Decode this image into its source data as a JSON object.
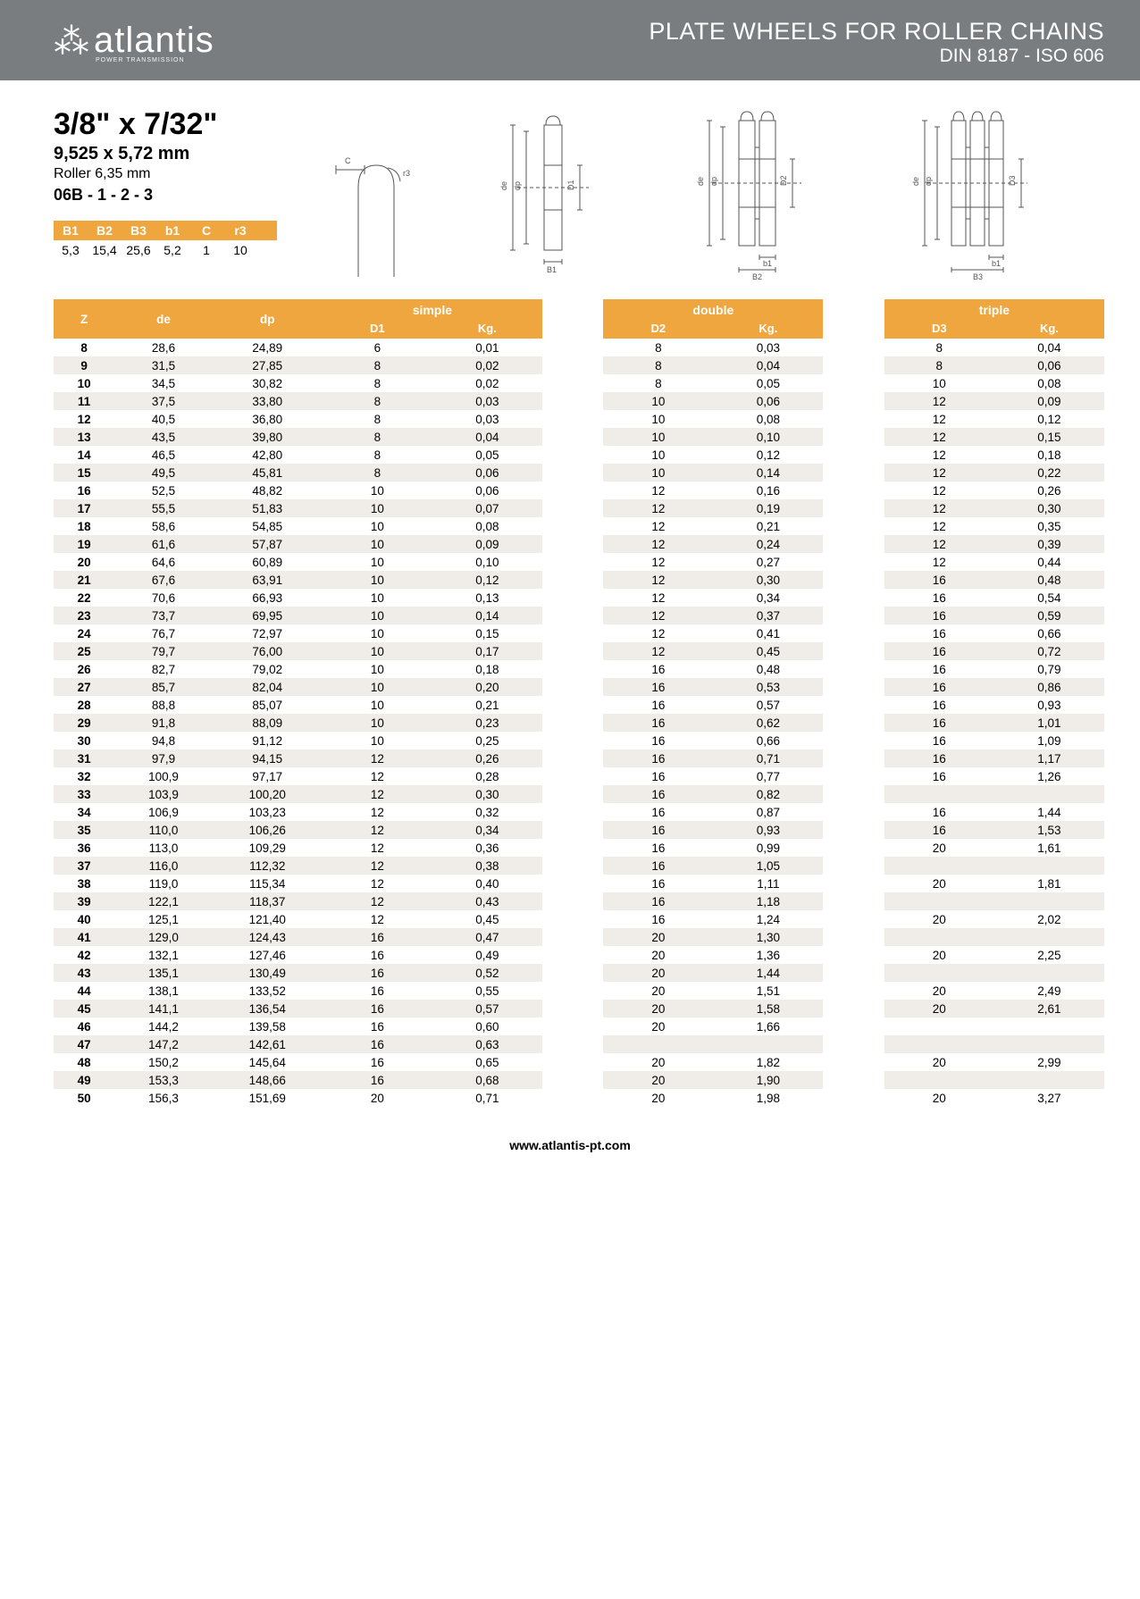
{
  "header": {
    "logo_text": "atlantis",
    "logo_sub": "POWER TRANSMISSION",
    "title1": "PLATE WHEELS FOR ROLLER CHAINS",
    "title2": "DIN 8187 - ISO 606"
  },
  "spec": {
    "main": "3/8\" x 7/32\"",
    "sub1": "9,525 x 5,72 mm",
    "sub2": "Roller 6,35 mm",
    "sub3": "06B - 1 - 2 - 3"
  },
  "mini_headers": [
    "B1",
    "B2",
    "B3",
    "b1",
    "C",
    "r3"
  ],
  "mini_values": [
    "5,3",
    "15,4",
    "25,6",
    "5,2",
    "1",
    "10"
  ],
  "columns": {
    "z": "Z",
    "de": "de",
    "dp": "dp",
    "simple": "simple",
    "d1": "D1",
    "kg1": "Kg.",
    "double": "double",
    "d2": "D2",
    "kg2": "Kg.",
    "triple": "triple",
    "d3": "D3",
    "kg3": "Kg."
  },
  "colors": {
    "header_bg": "#7a7d80",
    "accent": "#f0a63e",
    "row_alt": "#f0ede8",
    "text": "#222"
  },
  "footer": "www.atlantis-pt.com",
  "rows": [
    {
      "z": "8",
      "de": "28,6",
      "dp": "24,89",
      "d1": "6",
      "kg1": "0,01",
      "d2": "8",
      "kg2": "0,03",
      "d3": "8",
      "kg3": "0,04"
    },
    {
      "z": "9",
      "de": "31,5",
      "dp": "27,85",
      "d1": "8",
      "kg1": "0,02",
      "d2": "8",
      "kg2": "0,04",
      "d3": "8",
      "kg3": "0,06"
    },
    {
      "z": "10",
      "de": "34,5",
      "dp": "30,82",
      "d1": "8",
      "kg1": "0,02",
      "d2": "8",
      "kg2": "0,05",
      "d3": "10",
      "kg3": "0,08"
    },
    {
      "z": "11",
      "de": "37,5",
      "dp": "33,80",
      "d1": "8",
      "kg1": "0,03",
      "d2": "10",
      "kg2": "0,06",
      "d3": "12",
      "kg3": "0,09"
    },
    {
      "z": "12",
      "de": "40,5",
      "dp": "36,80",
      "d1": "8",
      "kg1": "0,03",
      "d2": "10",
      "kg2": "0,08",
      "d3": "12",
      "kg3": "0,12"
    },
    {
      "z": "13",
      "de": "43,5",
      "dp": "39,80",
      "d1": "8",
      "kg1": "0,04",
      "d2": "10",
      "kg2": "0,10",
      "d3": "12",
      "kg3": "0,15"
    },
    {
      "z": "14",
      "de": "46,5",
      "dp": "42,80",
      "d1": "8",
      "kg1": "0,05",
      "d2": "10",
      "kg2": "0,12",
      "d3": "12",
      "kg3": "0,18"
    },
    {
      "z": "15",
      "de": "49,5",
      "dp": "45,81",
      "d1": "8",
      "kg1": "0,06",
      "d2": "10",
      "kg2": "0,14",
      "d3": "12",
      "kg3": "0,22"
    },
    {
      "z": "16",
      "de": "52,5",
      "dp": "48,82",
      "d1": "10",
      "kg1": "0,06",
      "d2": "12",
      "kg2": "0,16",
      "d3": "12",
      "kg3": "0,26"
    },
    {
      "z": "17",
      "de": "55,5",
      "dp": "51,83",
      "d1": "10",
      "kg1": "0,07",
      "d2": "12",
      "kg2": "0,19",
      "d3": "12",
      "kg3": "0,30"
    },
    {
      "z": "18",
      "de": "58,6",
      "dp": "54,85",
      "d1": "10",
      "kg1": "0,08",
      "d2": "12",
      "kg2": "0,21",
      "d3": "12",
      "kg3": "0,35"
    },
    {
      "z": "19",
      "de": "61,6",
      "dp": "57,87",
      "d1": "10",
      "kg1": "0,09",
      "d2": "12",
      "kg2": "0,24",
      "d3": "12",
      "kg3": "0,39"
    },
    {
      "z": "20",
      "de": "64,6",
      "dp": "60,89",
      "d1": "10",
      "kg1": "0,10",
      "d2": "12",
      "kg2": "0,27",
      "d3": "12",
      "kg3": "0,44"
    },
    {
      "z": "21",
      "de": "67,6",
      "dp": "63,91",
      "d1": "10",
      "kg1": "0,12",
      "d2": "12",
      "kg2": "0,30",
      "d3": "16",
      "kg3": "0,48"
    },
    {
      "z": "22",
      "de": "70,6",
      "dp": "66,93",
      "d1": "10",
      "kg1": "0,13",
      "d2": "12",
      "kg2": "0,34",
      "d3": "16",
      "kg3": "0,54"
    },
    {
      "z": "23",
      "de": "73,7",
      "dp": "69,95",
      "d1": "10",
      "kg1": "0,14",
      "d2": "12",
      "kg2": "0,37",
      "d3": "16",
      "kg3": "0,59"
    },
    {
      "z": "24",
      "de": "76,7",
      "dp": "72,97",
      "d1": "10",
      "kg1": "0,15",
      "d2": "12",
      "kg2": "0,41",
      "d3": "16",
      "kg3": "0,66"
    },
    {
      "z": "25",
      "de": "79,7",
      "dp": "76,00",
      "d1": "10",
      "kg1": "0,17",
      "d2": "12",
      "kg2": "0,45",
      "d3": "16",
      "kg3": "0,72"
    },
    {
      "z": "26",
      "de": "82,7",
      "dp": "79,02",
      "d1": "10",
      "kg1": "0,18",
      "d2": "16",
      "kg2": "0,48",
      "d3": "16",
      "kg3": "0,79"
    },
    {
      "z": "27",
      "de": "85,7",
      "dp": "82,04",
      "d1": "10",
      "kg1": "0,20",
      "d2": "16",
      "kg2": "0,53",
      "d3": "16",
      "kg3": "0,86"
    },
    {
      "z": "28",
      "de": "88,8",
      "dp": "85,07",
      "d1": "10",
      "kg1": "0,21",
      "d2": "16",
      "kg2": "0,57",
      "d3": "16",
      "kg3": "0,93"
    },
    {
      "z": "29",
      "de": "91,8",
      "dp": "88,09",
      "d1": "10",
      "kg1": "0,23",
      "d2": "16",
      "kg2": "0,62",
      "d3": "16",
      "kg3": "1,01"
    },
    {
      "z": "30",
      "de": "94,8",
      "dp": "91,12",
      "d1": "10",
      "kg1": "0,25",
      "d2": "16",
      "kg2": "0,66",
      "d3": "16",
      "kg3": "1,09"
    },
    {
      "z": "31",
      "de": "97,9",
      "dp": "94,15",
      "d1": "12",
      "kg1": "0,26",
      "d2": "16",
      "kg2": "0,71",
      "d3": "16",
      "kg3": "1,17"
    },
    {
      "z": "32",
      "de": "100,9",
      "dp": "97,17",
      "d1": "12",
      "kg1": "0,28",
      "d2": "16",
      "kg2": "0,77",
      "d3": "16",
      "kg3": "1,26"
    },
    {
      "z": "33",
      "de": "103,9",
      "dp": "100,20",
      "d1": "12",
      "kg1": "0,30",
      "d2": "16",
      "kg2": "0,82",
      "d3": "",
      "kg3": ""
    },
    {
      "z": "34",
      "de": "106,9",
      "dp": "103,23",
      "d1": "12",
      "kg1": "0,32",
      "d2": "16",
      "kg2": "0,87",
      "d3": "16",
      "kg3": "1,44"
    },
    {
      "z": "35",
      "de": "110,0",
      "dp": "106,26",
      "d1": "12",
      "kg1": "0,34",
      "d2": "16",
      "kg2": "0,93",
      "d3": "16",
      "kg3": "1,53"
    },
    {
      "z": "36",
      "de": "113,0",
      "dp": "109,29",
      "d1": "12",
      "kg1": "0,36",
      "d2": "16",
      "kg2": "0,99",
      "d3": "20",
      "kg3": "1,61"
    },
    {
      "z": "37",
      "de": "116,0",
      "dp": "112,32",
      "d1": "12",
      "kg1": "0,38",
      "d2": "16",
      "kg2": "1,05",
      "d3": "",
      "kg3": ""
    },
    {
      "z": "38",
      "de": "119,0",
      "dp": "115,34",
      "d1": "12",
      "kg1": "0,40",
      "d2": "16",
      "kg2": "1,11",
      "d3": "20",
      "kg3": "1,81"
    },
    {
      "z": "39",
      "de": "122,1",
      "dp": "118,37",
      "d1": "12",
      "kg1": "0,43",
      "d2": "16",
      "kg2": "1,18",
      "d3": "",
      "kg3": ""
    },
    {
      "z": "40",
      "de": "125,1",
      "dp": "121,40",
      "d1": "12",
      "kg1": "0,45",
      "d2": "16",
      "kg2": "1,24",
      "d3": "20",
      "kg3": "2,02"
    },
    {
      "z": "41",
      "de": "129,0",
      "dp": "124,43",
      "d1": "16",
      "kg1": "0,47",
      "d2": "20",
      "kg2": "1,30",
      "d3": "",
      "kg3": ""
    },
    {
      "z": "42",
      "de": "132,1",
      "dp": "127,46",
      "d1": "16",
      "kg1": "0,49",
      "d2": "20",
      "kg2": "1,36",
      "d3": "20",
      "kg3": "2,25"
    },
    {
      "z": "43",
      "de": "135,1",
      "dp": "130,49",
      "d1": "16",
      "kg1": "0,52",
      "d2": "20",
      "kg2": "1,44",
      "d3": "",
      "kg3": ""
    },
    {
      "z": "44",
      "de": "138,1",
      "dp": "133,52",
      "d1": "16",
      "kg1": "0,55",
      "d2": "20",
      "kg2": "1,51",
      "d3": "20",
      "kg3": "2,49"
    },
    {
      "z": "45",
      "de": "141,1",
      "dp": "136,54",
      "d1": "16",
      "kg1": "0,57",
      "d2": "20",
      "kg2": "1,58",
      "d3": "20",
      "kg3": "2,61"
    },
    {
      "z": "46",
      "de": "144,2",
      "dp": "139,58",
      "d1": "16",
      "kg1": "0,60",
      "d2": "20",
      "kg2": "1,66",
      "d3": "",
      "kg3": ""
    },
    {
      "z": "47",
      "de": "147,2",
      "dp": "142,61",
      "d1": "16",
      "kg1": "0,63",
      "d2": "",
      "kg2": "",
      "d3": "",
      "kg3": ""
    },
    {
      "z": "48",
      "de": "150,2",
      "dp": "145,64",
      "d1": "16",
      "kg1": "0,65",
      "d2": "20",
      "kg2": "1,82",
      "d3": "20",
      "kg3": "2,99"
    },
    {
      "z": "49",
      "de": "153,3",
      "dp": "148,66",
      "d1": "16",
      "kg1": "0,68",
      "d2": "20",
      "kg2": "1,90",
      "d3": "",
      "kg3": ""
    },
    {
      "z": "50",
      "de": "156,3",
      "dp": "151,69",
      "d1": "20",
      "kg1": "0,71",
      "d2": "20",
      "kg2": "1,98",
      "d3": "20",
      "kg3": "3,27"
    }
  ]
}
